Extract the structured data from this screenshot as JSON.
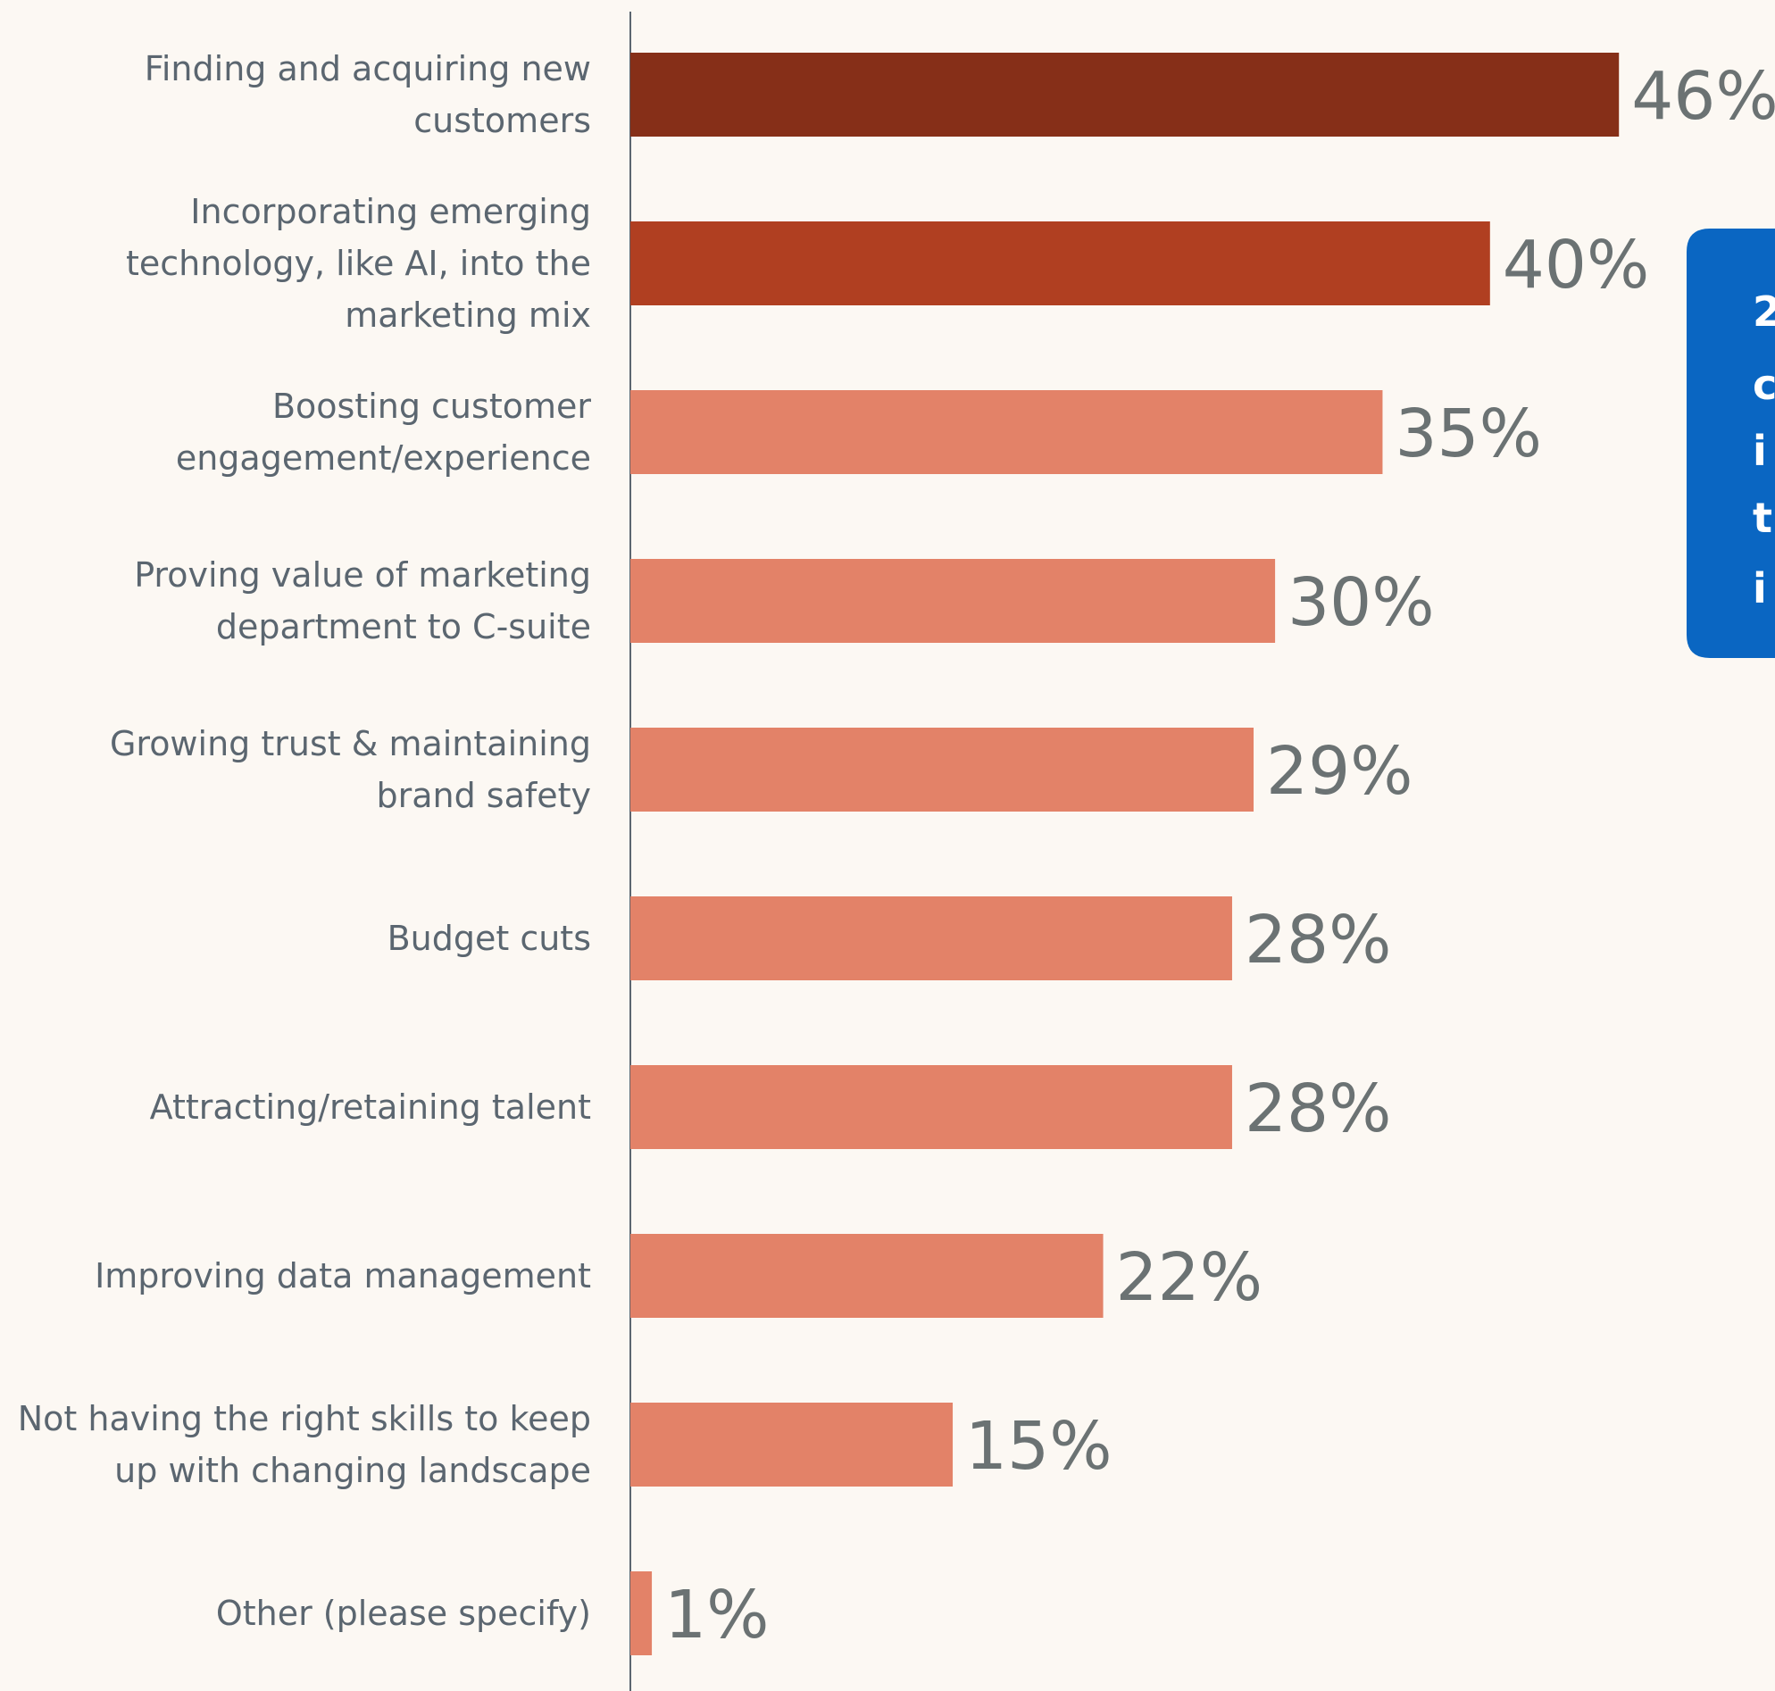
{
  "chart_data": {
    "type": "barh",
    "categories": [
      "Finding and acquiring new\ncustomers",
      "Incorporating emerging\ntechnology, like AI, into the\nmarketing mix",
      "Boosting customer\nengagement/experience",
      "Proving value of marketing\ndepartment to C-suite",
      "Growing trust & maintaining\nbrand safety",
      "Budget cuts",
      "Attracting/retaining  talent",
      "Improving data management",
      "Not having the right skills to keep\nup with changing landscape",
      "Other (please specify)"
    ],
    "values": [
      46,
      40,
      35,
      30,
      29,
      28,
      28,
      22,
      15,
      1
    ],
    "value_labels": [
      "46%",
      "40%",
      "35%",
      "30%",
      "29%",
      "28%",
      "28%",
      "22%",
      "15%",
      "1%"
    ],
    "colors": [
      "#862f18",
      "#b03f21",
      "#e38268",
      "#e38268",
      "#e38268",
      "#e38268",
      "#e38268",
      "#e38268",
      "#e38268",
      "#e38268"
    ],
    "callout_lines": [
      "2",
      "c",
      "i",
      "t",
      "i"
    ]
  }
}
